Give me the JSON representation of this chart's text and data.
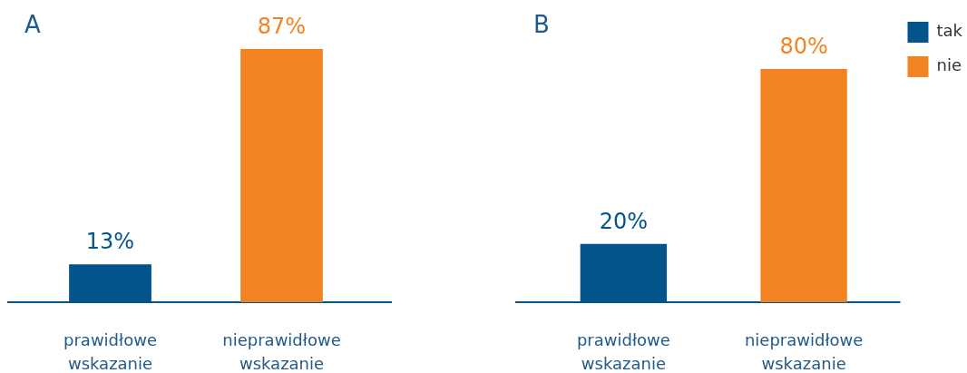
{
  "chart_data": [
    {
      "type": "bar",
      "title": "A",
      "categories": [
        "prawidłowe wskazanie",
        "nieprawidłowe wskazanie"
      ],
      "series": [
        {
          "color": "#02548a",
          "values": [
            13,
            null
          ],
          "value_labels": [
            "13%",
            null
          ]
        },
        {
          "color": "#f28322",
          "values": [
            null,
            87
          ],
          "value_labels": [
            null,
            "87%"
          ]
        }
      ],
      "tick_labels": "x"
    },
    {
      "type": "bar",
      "title": "B",
      "categories": [
        "prawidłowe wskazanie",
        "nieprawidłowe wskazanie"
      ],
      "series": [
        {
          "name": "tak",
          "color": "#02548a",
          "values": [
            20,
            null
          ],
          "value_labels": [
            "20%",
            null
          ]
        },
        {
          "name": "nie",
          "color": "#f28322",
          "values": [
            null,
            80
          ],
          "value_labels": [
            null,
            "80%"
          ]
        }
      ],
      "tick_labels": "x",
      "legend": "top right"
    }
  ]
}
